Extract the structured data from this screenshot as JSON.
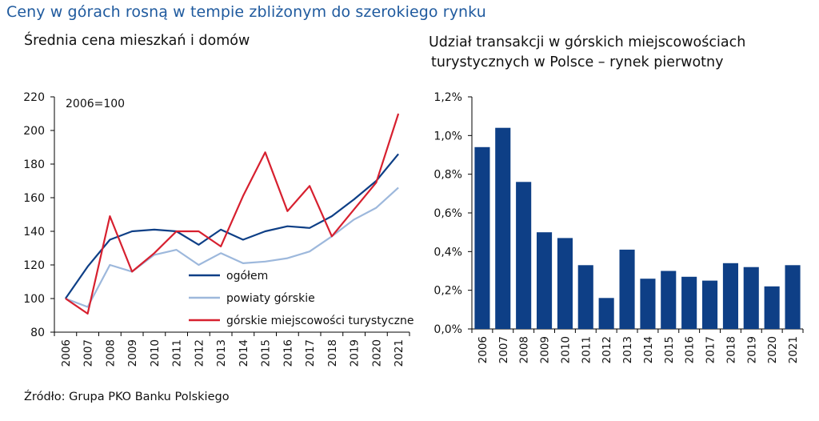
{
  "main_title": "Ceny w górach rosną w tempie zbliżonym do szerokiego rynku",
  "source": "Źródło: Grupa PKO Banku Polskiego",
  "chart_data": [
    {
      "type": "line",
      "title": "Średnia cena mieszkań i domów",
      "annotation": "2006=100",
      "x": [
        "2006",
        "2007",
        "2008",
        "2009",
        "2010",
        "2011",
        "2012",
        "2013",
        "2014",
        "2015",
        "2016",
        "2017",
        "2018",
        "2019",
        "2020",
        "2021"
      ],
      "ylim": [
        80,
        220
      ],
      "yticks": [
        "80",
        "100",
        "120",
        "140",
        "160",
        "180",
        "200",
        "220"
      ],
      "legend_position": "bottom-right",
      "series": [
        {
          "name": "ogółem",
          "color": "#0e3f86",
          "values": [
            100,
            119,
            135,
            140,
            141,
            140,
            132,
            141,
            135,
            140,
            143,
            142,
            149,
            159,
            170,
            186
          ]
        },
        {
          "name": "powiaty górskie",
          "color": "#9db8dc",
          "values": [
            100,
            95,
            120,
            116,
            126,
            129,
            120,
            127,
            121,
            122,
            124,
            128,
            137,
            147,
            154,
            166
          ]
        },
        {
          "name": "górskie miejscowości turystyczne",
          "color": "#d7202f",
          "values": [
            100,
            91,
            149,
            116,
            127,
            140,
            140,
            131,
            161,
            187,
            152,
            167,
            137,
            153,
            169,
            210
          ]
        }
      ]
    },
    {
      "type": "bar",
      "title_line1": "Udział transakcji w górskich miejscowościach",
      "title_line2": "turystycznych w Polsce – rynek pierwotny",
      "categories": [
        "2006",
        "2007",
        "2008",
        "2009",
        "2010",
        "2011",
        "2012",
        "2013",
        "2014",
        "2015",
        "2016",
        "2017",
        "2018",
        "2019",
        "2020",
        "2021"
      ],
      "values": [
        0.94,
        1.04,
        0.76,
        0.5,
        0.47,
        0.33,
        0.16,
        0.41,
        0.26,
        0.3,
        0.27,
        0.25,
        0.34,
        0.32,
        0.22,
        0.33
      ],
      "unit": "%",
      "ylim": [
        0,
        1.2
      ],
      "yticks": [
        "0,0%",
        "0,2%",
        "0,4%",
        "0,6%",
        "0,8%",
        "1,0%",
        "1,2%"
      ],
      "bar_color": "#0e3f86"
    }
  ]
}
